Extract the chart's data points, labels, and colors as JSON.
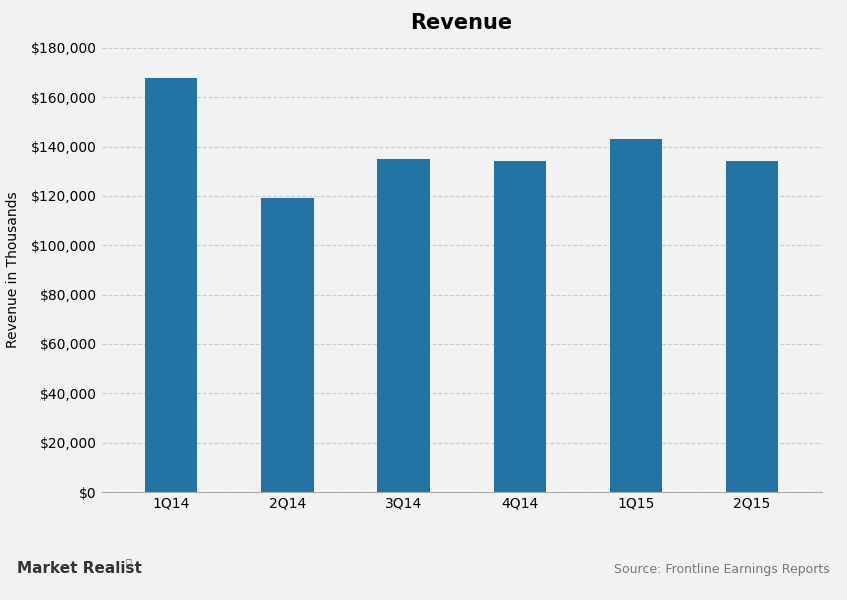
{
  "categories": [
    "1Q14",
    "2Q14",
    "3Q14",
    "4Q14",
    "1Q15",
    "2Q15"
  ],
  "values": [
    168000,
    119000,
    135000,
    134000,
    143000,
    134000
  ],
  "bar_color": "#2274a5",
  "title": "Revenue",
  "ylabel": "Revenue in Thousands",
  "ylim": [
    0,
    180000
  ],
  "yticks": [
    0,
    20000,
    40000,
    60000,
    80000,
    100000,
    120000,
    140000,
    160000,
    180000
  ],
  "title_fontsize": 15,
  "axis_label_fontsize": 10,
  "tick_fontsize": 10,
  "background_color": "#f2f2f2",
  "plot_background": "#f2f2f2",
  "grid_color": "#cccccc",
  "watermark_left": "Market Realist",
  "source_text": "Source: Frontline Earnings Reports",
  "bar_width": 0.45
}
